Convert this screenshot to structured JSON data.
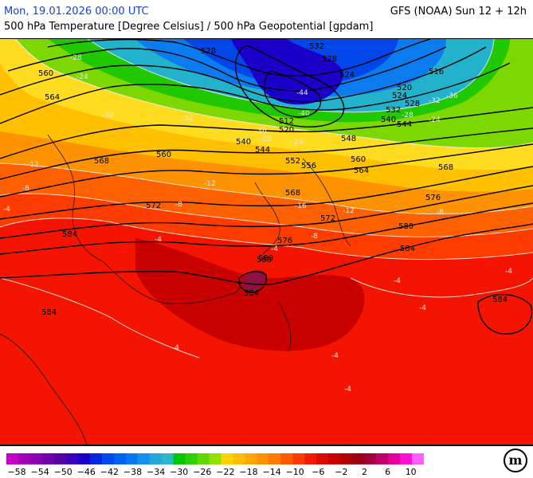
{
  "header": {
    "date": "Mon, 19.01.2026 00:00 UTC",
    "model": "GFS (NOAA) Sun 12 + 12h",
    "title": "500 hPa Temperature [Degree Celsius] / 500 hPa Geopotential [gpdam]"
  },
  "legend": {
    "colors": [
      "#c400c4",
      "#a000b8",
      "#8a00b0",
      "#7000a8",
      "#5800a8",
      "#3c00b8",
      "#1c00c8",
      "#0028e0",
      "#0048ec",
      "#0060f0",
      "#0878f0",
      "#1490e8",
      "#20a8d8",
      "#28b8c8",
      "#00c800",
      "#30d000",
      "#60d800",
      "#90e000",
      "#ffd200",
      "#ffbe00",
      "#ffa800",
      "#ff9000",
      "#ff7800",
      "#ff5a00",
      "#ff3a00",
      "#f01a00",
      "#dc0a00",
      "#c80000",
      "#b00000",
      "#980014",
      "#a0003c",
      "#c0006a",
      "#e4009a",
      "#ff10d2",
      "#ff60ff"
    ],
    "tick_labels": [
      "-58",
      "-54",
      "-50",
      "-46",
      "-42",
      "-38",
      "-34",
      "-30",
      "-26",
      "-22",
      "-18",
      "-14",
      "-10",
      "-6",
      "-2",
      "2",
      "6",
      "10"
    ]
  },
  "geopotential_labels": [
    "528",
    "532",
    "528",
    "524",
    "520",
    "516",
    "524",
    "528",
    "532",
    "540",
    "544",
    "560",
    "564",
    "512",
    "520",
    "540",
    "544",
    "548",
    "552",
    "556",
    "560",
    "564",
    "568",
    "560",
    "568",
    "572",
    "576",
    "580",
    "584",
    "568",
    "572",
    "580",
    "576",
    "580",
    "584",
    "584",
    "584",
    "584"
  ],
  "temperature_labels": [
    "-28",
    "-24",
    "-30",
    "-32",
    "-36",
    "-44",
    "-40",
    "-28",
    "-24",
    "-32",
    "-36",
    "-28",
    "-24",
    "-12",
    "-8",
    "-12",
    "-8",
    "-16",
    "-12",
    "-8",
    "-4",
    "-8",
    "-4",
    "-4",
    "-4",
    "-4",
    "-4",
    "-4",
    "-4",
    "-4"
  ],
  "logo_text": "m",
  "colors": {
    "header_date": "#1a3fcf",
    "contour_geopotential": "#000000",
    "contour_temperature": "#e8e8e8"
  }
}
